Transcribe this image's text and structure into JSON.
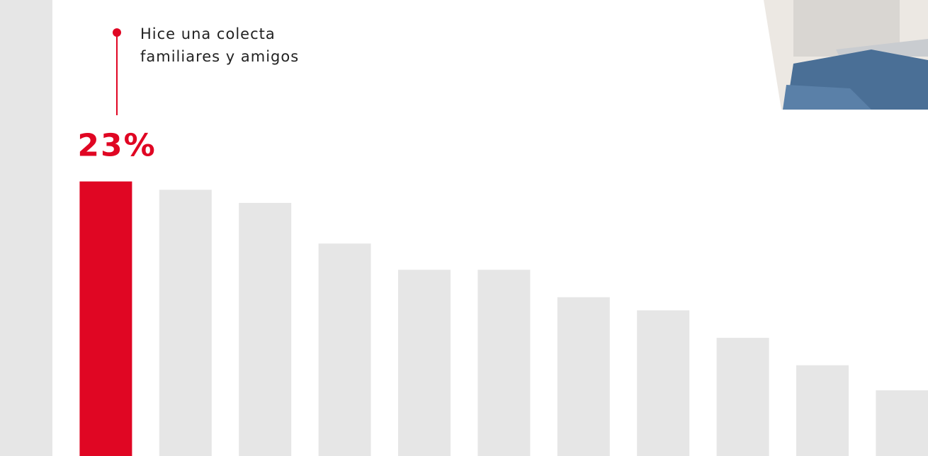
{
  "chart_data": {
    "type": "bar",
    "categories": [
      null,
      null,
      null,
      null,
      null,
      null,
      null,
      null,
      null,
      null,
      null,
      null
    ],
    "values": [
      40,
      23,
      22.3,
      21.2,
      17.8,
      15.6,
      15.6,
      13.3,
      12.2,
      9.9,
      7.6,
      5.5
    ],
    "value_labels": [
      null,
      "23%",
      null,
      null,
      null,
      null,
      null,
      null,
      null,
      null,
      null,
      null
    ],
    "colors": [
      "#e6e6e6",
      "#e00623",
      "#e6e6e6",
      "#e6e6e6",
      "#e6e6e6",
      "#e6e6e6",
      "#e6e6e6",
      "#e6e6e6",
      "#e6e6e6",
      "#e6e6e6",
      "#e6e6e6",
      "#e6e6e6"
    ],
    "annotation": [
      "Hice una colecta",
      "familiares y amigos"
    ],
    "ylim": [
      0,
      38.2
    ]
  }
}
